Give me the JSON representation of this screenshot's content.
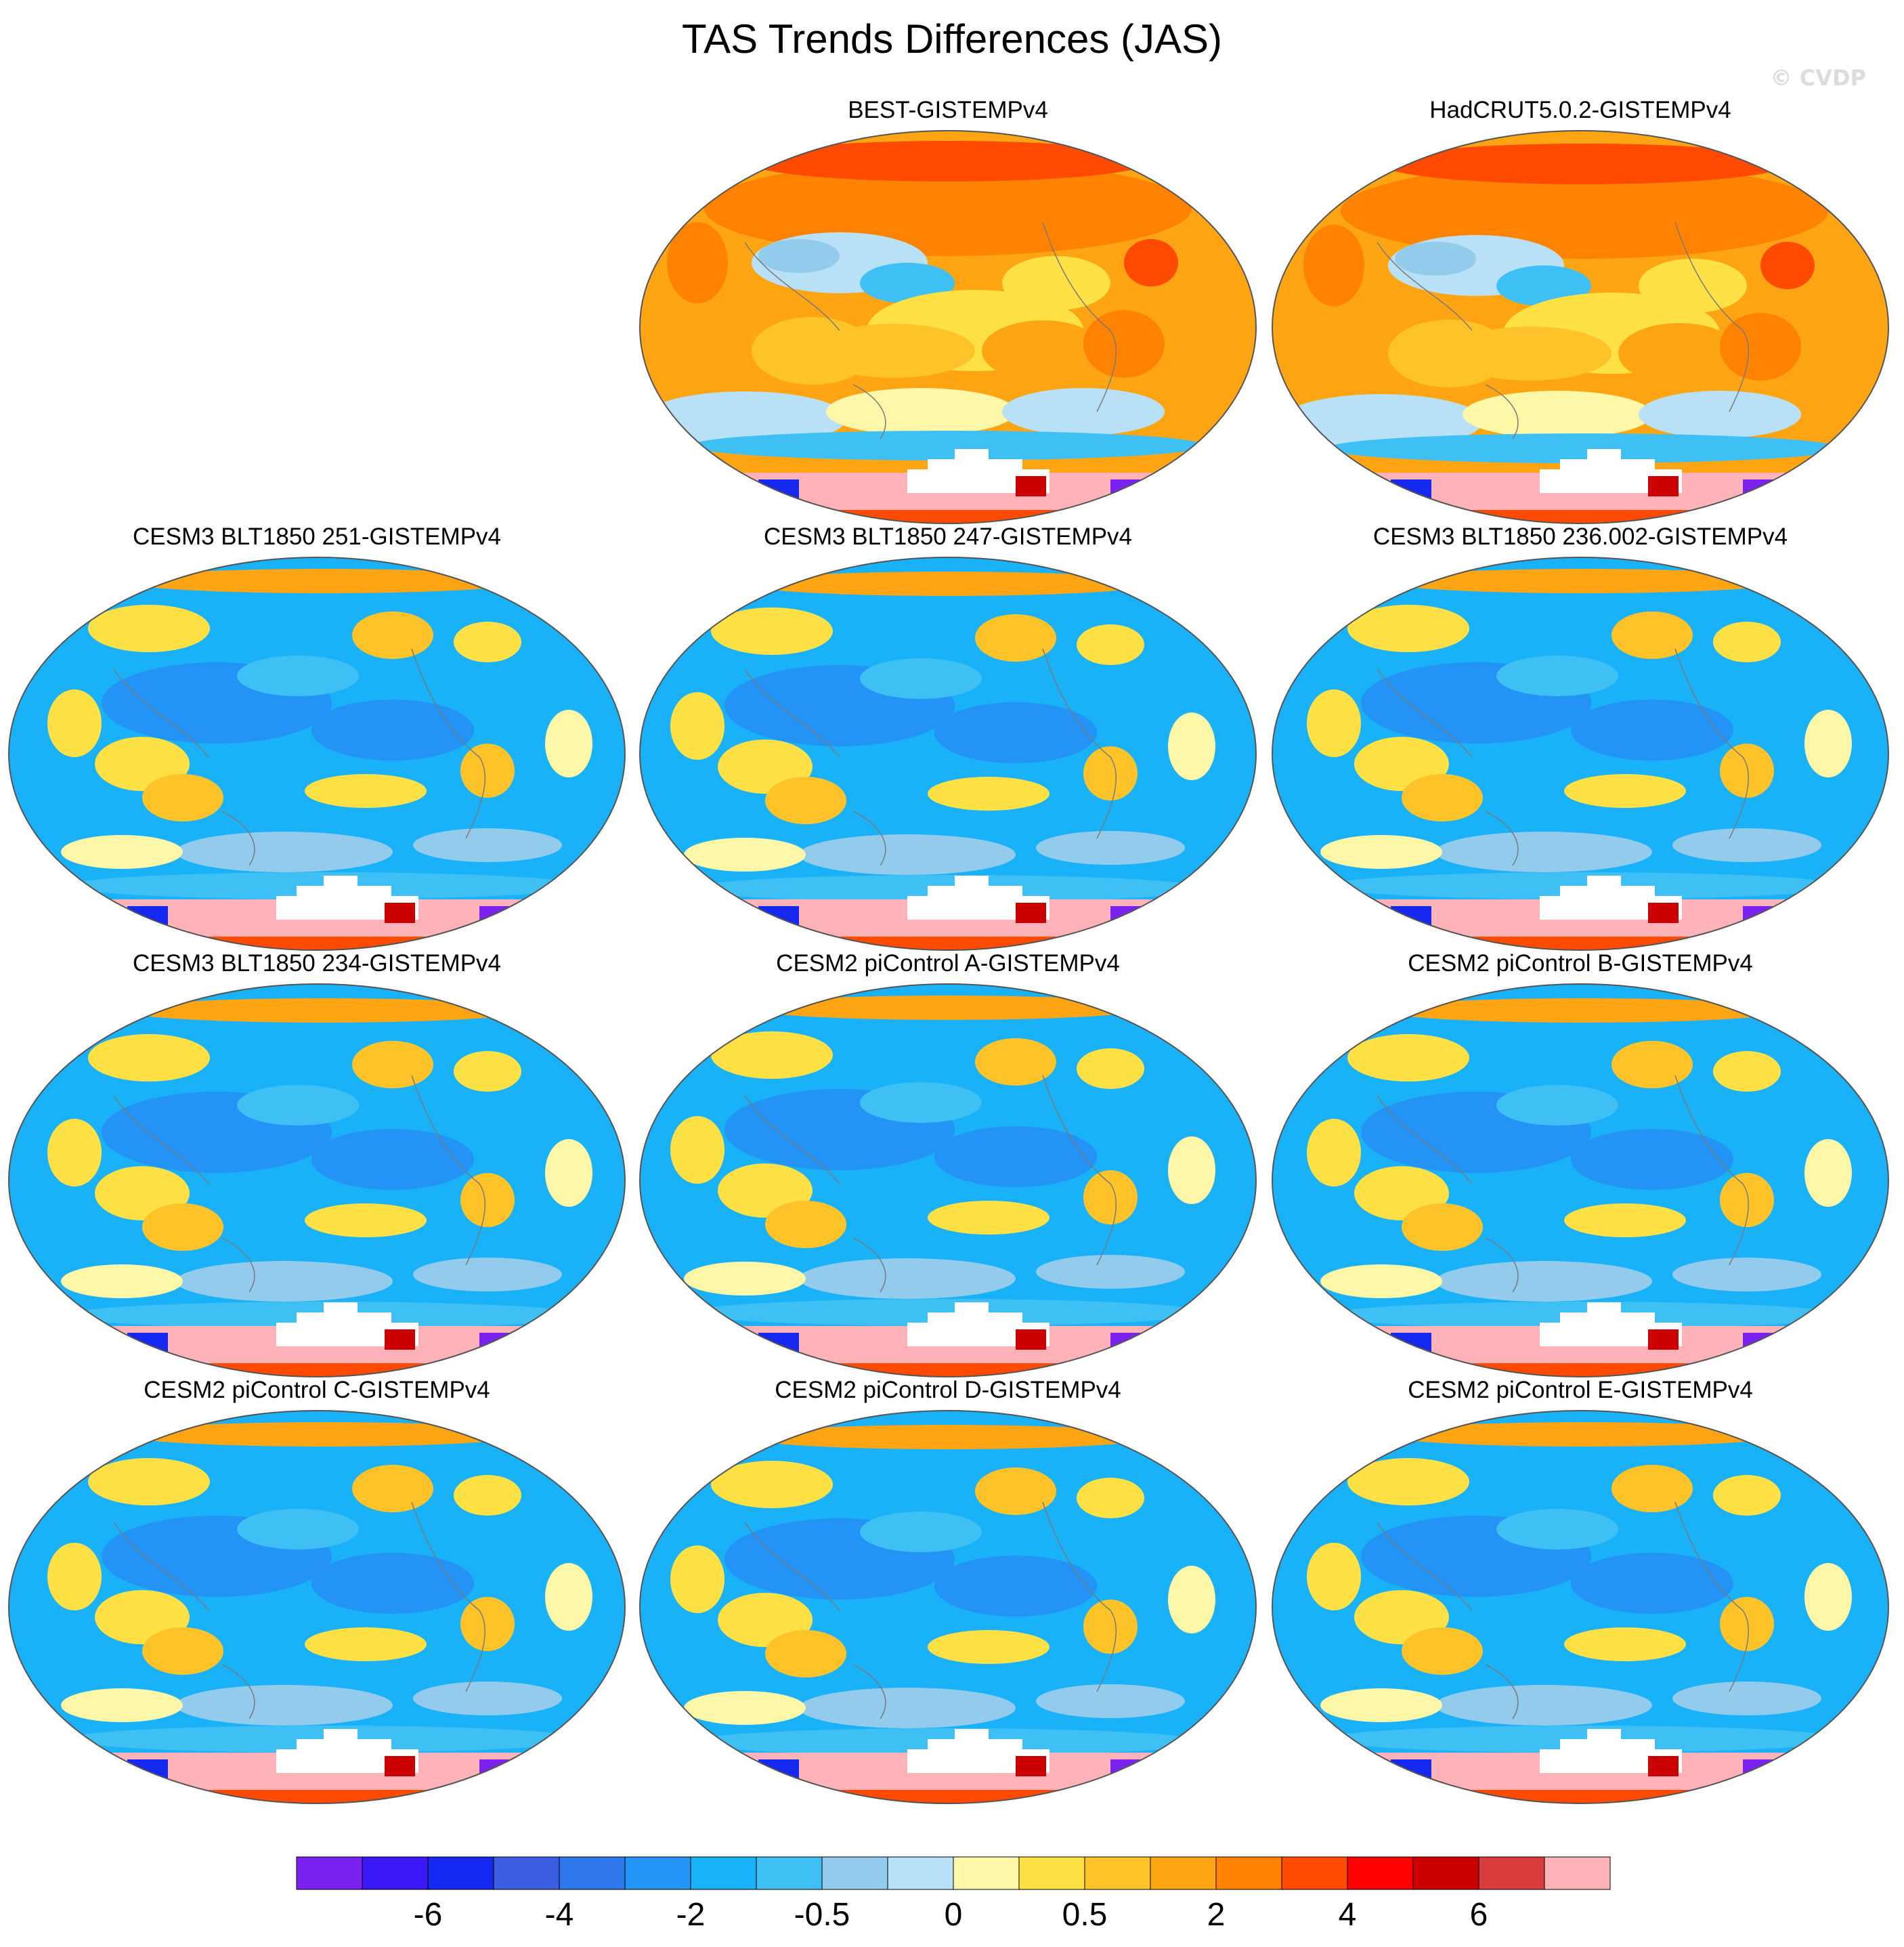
{
  "title": "TAS Trends Differences (JAS)",
  "watermark": "© CVDP",
  "panels": [
    {
      "label": "BEST-GISTEMPv4",
      "field": "obs"
    },
    {
      "label": "HadCRUT5.0.2-GISTEMPv4",
      "field": "obs"
    },
    {
      "label": "CESM3 BLT1850 251-GISTEMPv4",
      "field": "model"
    },
    {
      "label": "CESM3 BLT1850 247-GISTEMPv4",
      "field": "model"
    },
    {
      "label": "CESM3 BLT1850 236.002-GISTEMPv4",
      "field": "model"
    },
    {
      "label": "CESM3 BLT1850 234-GISTEMPv4",
      "field": "model"
    },
    {
      "label": "CESM2 piControl A-GISTEMPv4",
      "field": "model"
    },
    {
      "label": "CESM2 piControl B-GISTEMPv4",
      "field": "model"
    },
    {
      "label": "CESM2 piControl C-GISTEMPv4",
      "field": "model"
    },
    {
      "label": "CESM2 piControl D-GISTEMPv4",
      "field": "model"
    },
    {
      "label": "CESM2 piControl E-GISTEMPv4",
      "field": "model"
    }
  ],
  "colorbar": {
    "colors": [
      "#7b22f0",
      "#3a18f5",
      "#1428f0",
      "#3c5ee0",
      "#2f78ec",
      "#2393f5",
      "#19b1f7",
      "#3ec0f5",
      "#92cbec",
      "#b8e0f6",
      "#fff7a8",
      "#ffe045",
      "#ffc32a",
      "#ffa513",
      "#ff8200",
      "#ff4a00",
      "#ff0000",
      "#cc0000",
      "#d83c3c",
      "#ffb3b8"
    ],
    "labels": [
      "-6",
      "-4",
      "-2",
      "-0.5",
      "0",
      "0.5",
      "2",
      "4",
      "6"
    ]
  }
}
